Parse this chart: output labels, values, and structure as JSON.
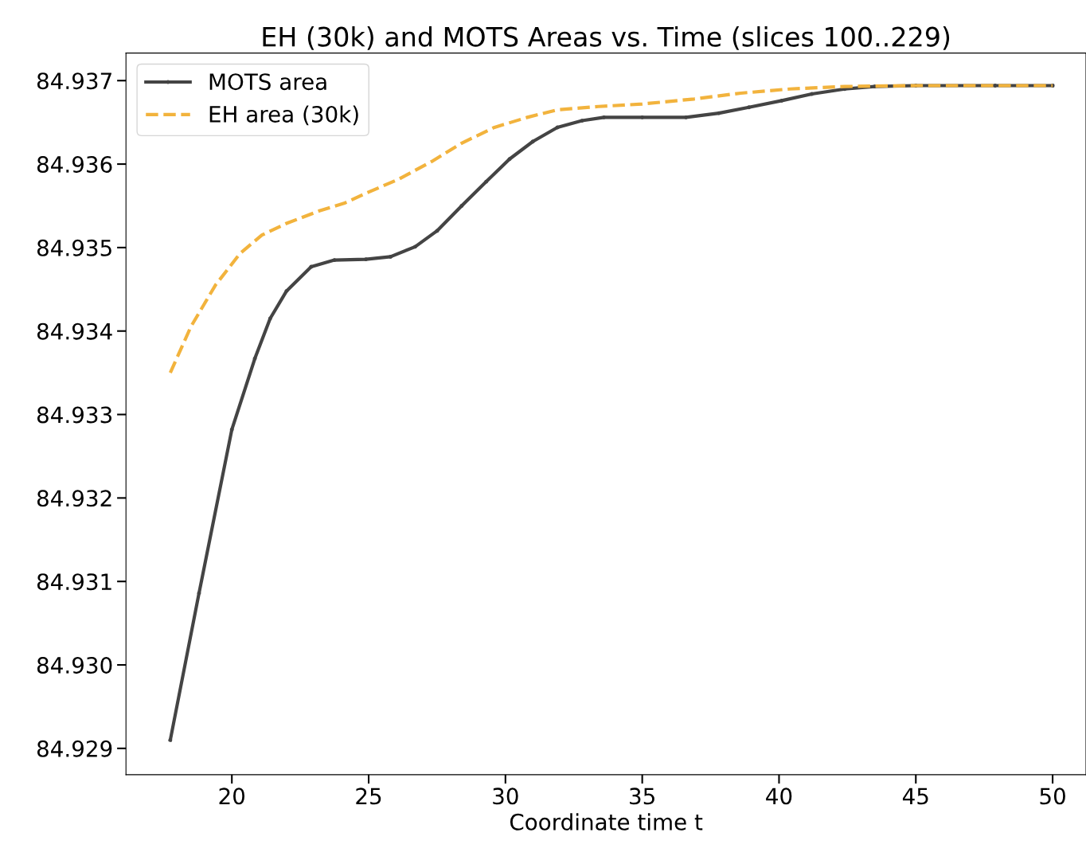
{
  "chart_data": {
    "type": "line",
    "title": "EH (30k) and MOTS Areas vs. Time (slices 100..229)",
    "xlabel": "Coordinate time t",
    "xlim": [
      16.13,
      51.22
    ],
    "xticks": [
      20,
      25,
      30,
      35,
      40,
      45,
      50
    ],
    "ylim": [
      84.928685,
      84.93733
    ],
    "yticks": [
      {
        "value": 84.929,
        "label": "84.929"
      },
      {
        "value": 84.93,
        "label": "84.930"
      },
      {
        "value": 84.931,
        "label": "84.931"
      },
      {
        "value": 84.932,
        "label": "84.932"
      },
      {
        "value": 84.933,
        "label": "84.933"
      },
      {
        "value": 84.934,
        "label": "84.934"
      },
      {
        "value": 84.935,
        "label": "84.935"
      },
      {
        "value": 84.936,
        "label": "84.936"
      },
      {
        "value": 84.937,
        "label": "84.937"
      }
    ],
    "grid": false,
    "legend": "top left",
    "series": [
      {
        "name": "MOTS area",
        "color": "#444444",
        "marker": "circle",
        "line_style": "solid",
        "x": [
          17.75,
          18.8,
          20,
          20.84,
          21.4,
          22,
          22.9,
          23.75,
          24.9,
          25.8,
          26.7,
          27.5,
          28.4,
          29.3,
          30.15,
          31.0,
          31.9,
          32.8,
          33.6,
          35,
          36.6,
          37.8,
          38.9,
          40.1,
          41.2,
          42.4,
          43.5,
          45,
          47.9,
          50
        ],
        "values": [
          84.9291,
          84.93086,
          84.93282,
          84.93367,
          84.93415,
          84.93448,
          84.93477,
          84.93485,
          84.93486,
          84.93489,
          84.93501,
          84.9352,
          84.9355,
          84.93579,
          84.93606,
          84.93627,
          84.93644,
          84.93652,
          84.93656,
          84.93656,
          84.93656,
          84.93661,
          84.93668,
          84.93676,
          84.93684,
          84.9369,
          84.93693,
          84.93694,
          84.93694,
          84.93694
        ]
      },
      {
        "name": "EH area (30k)",
        "color": "#f2b33d",
        "marker": "none",
        "line_style": "dashed",
        "x": [
          17.75,
          18.5,
          19.4,
          20.3,
          21.1,
          22,
          23.2,
          24.1,
          24.9,
          26.1,
          27.3,
          28.4,
          29.6,
          30.8,
          31.9,
          33.4,
          35,
          36.9,
          38.6,
          40.4,
          42.4,
          45,
          50
        ],
        "values": [
          84.9335,
          84.93405,
          84.93455,
          84.93493,
          84.93515,
          84.93529,
          84.93544,
          84.93553,
          84.93565,
          84.93582,
          84.93603,
          84.93625,
          84.93644,
          84.93656,
          84.93665,
          84.93669,
          84.93672,
          84.93678,
          84.93685,
          84.9369,
          84.93693,
          84.93694,
          84.93694
        ]
      }
    ]
  }
}
